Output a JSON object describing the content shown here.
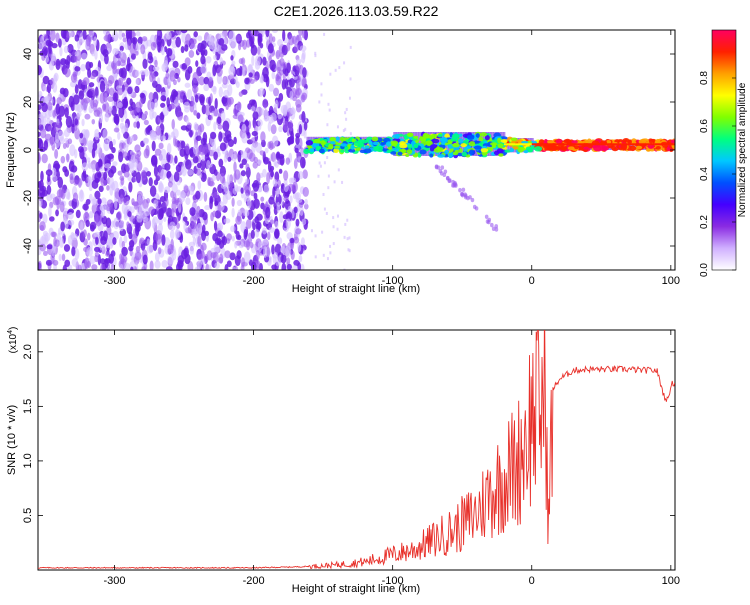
{
  "title": "C2E1.2026.113.03.59.R22",
  "chart_data": [
    {
      "type": "heatmap",
      "xlabel": "Height of straight line (km)",
      "ylabel": "Frequency (Hz)",
      "xlim": [
        -355,
        103
      ],
      "ylim": [
        -50,
        50
      ],
      "xticks": [
        -300,
        -200,
        -100,
        0,
        100
      ],
      "yticks": [
        -40,
        -20,
        0,
        20,
        40
      ],
      "colorbar": {
        "label": "Normalized spectral amplitude",
        "range": [
          0,
          1
        ],
        "ticks": [
          0.0,
          0.2,
          0.4,
          0.6,
          0.8
        ],
        "tick_labels": [
          "0.0",
          "0.2",
          "0.4",
          "0.6",
          "0.8"
        ],
        "colors": [
          "#ffffff",
          "#d0b0ff",
          "#8a2be2",
          "#4400ff",
          "#0050ff",
          "#00c8ff",
          "#00ff80",
          "#80ff00",
          "#ffff00",
          "#ffa000",
          "#ff2000",
          "#ff0060"
        ]
      },
      "regions": [
        {
          "name": "noise",
          "x_range": [
            -355,
            -162
          ],
          "freq_range": [
            -50,
            50
          ],
          "amplitude": 0.12
        },
        {
          "name": "signal_band",
          "x_range": [
            -162,
            103
          ],
          "freq_center": 2,
          "amplitude": 0.5
        }
      ]
    },
    {
      "type": "line",
      "xlabel": "Height of straight line (km)",
      "ylabel": "SNR (10 * v/v)",
      "y_multiplier": "(x10",
      "y_multiplier_exp": "4",
      "y_multiplier_close": ")",
      "xlim": [
        -355,
        103
      ],
      "ylim": [
        0,
        2.2
      ],
      "xticks": [
        -300,
        -200,
        -100,
        0,
        100
      ],
      "yticks": [
        0.5,
        1.0,
        1.5,
        2.0
      ],
      "ytick_labels": [
        "0.5",
        "1.0",
        "1.5",
        "2.0"
      ],
      "series": [
        {
          "color": "#e8302a",
          "x": [
            -355,
            -300,
            -250,
            -200,
            -165,
            -140,
            -120,
            -100,
            -85,
            -70,
            -55,
            -40,
            -30,
            -20,
            -10,
            -5,
            0,
            5,
            10,
            12,
            15,
            20,
            30,
            40,
            50,
            60,
            70,
            80,
            90,
            95,
            98,
            100,
            103
          ],
          "y": [
            0.02,
            0.02,
            0.02,
            0.02,
            0.03,
            0.05,
            0.08,
            0.15,
            0.2,
            0.3,
            0.4,
            0.55,
            0.75,
            0.9,
            1.05,
            1.3,
            1.5,
            1.6,
            1.7,
            0.4,
            1.65,
            1.75,
            1.83,
            1.84,
            1.84,
            1.84,
            1.84,
            1.83,
            1.83,
            1.6,
            1.55,
            1.7,
            1.72
          ]
        }
      ]
    }
  ]
}
